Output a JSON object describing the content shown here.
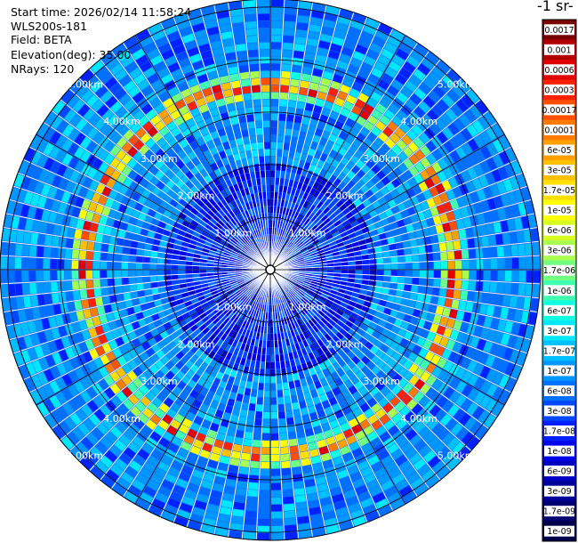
{
  "header": {
    "start_time": "Start time: 2026/02/14 11:58:24",
    "instrument": "WLS200s-181",
    "field": "Field: BETA",
    "elevation": "Elevation(deg): 35.00",
    "nrays": "NRays: 120"
  },
  "colorbar": {
    "title": "-1 sr-",
    "labels": [
      "0.0017",
      "0.001",
      "0.0006",
      "0.0003",
      "0.00017",
      "0.0001",
      "6e-05",
      "3e-05",
      "1.7e-05",
      "1e-05",
      "6e-06",
      "3e-06",
      "1.7e-06",
      "1e-06",
      "6e-07",
      "3e-07",
      "1.7e-07",
      "1e-07",
      "6e-08",
      "3e-08",
      "1.7e-08",
      "1e-08",
      "6e-09",
      "3e-09",
      "1.7e-09",
      "1e-09"
    ],
    "colors": [
      "#7a0000",
      "#b00000",
      "#e00000",
      "#ff2000",
      "#ff5000",
      "#ff7a00",
      "#ffa000",
      "#ffc000",
      "#ffe000",
      "#ffff00",
      "#d8ff20",
      "#a8ff50",
      "#70ff80",
      "#40ffb0",
      "#10ffe0",
      "#00e8ff",
      "#00c0ff",
      "#0098ff",
      "#0070ff",
      "#0048ff",
      "#0020ff",
      "#0000e8",
      "#0000c0",
      "#000098",
      "#000070",
      "#000048"
    ]
  },
  "chart_data": {
    "type": "heatmap",
    "projection": "polar-ppi",
    "field": "BETA",
    "elevation_deg": 35.0,
    "nrays": 120,
    "range_rings_km": [
      1,
      2,
      3,
      4,
      5
    ],
    "range_labels": [
      "1.00km",
      "2.00km",
      "3.00km",
      "4.00km",
      "5.00km"
    ],
    "max_range_km": 5.15,
    "azimuth_lines_deg": [
      0,
      30,
      60,
      90,
      120,
      150,
      180,
      210,
      240,
      270,
      300,
      330
    ],
    "label_azimuths_deg": [
      45,
      135,
      225,
      315
    ],
    "feature": {
      "description_values": "enhanced backscatter band",
      "center_range_km": 3.55,
      "peak_value": 0.0003,
      "background_value": 6e-08
    }
  }
}
